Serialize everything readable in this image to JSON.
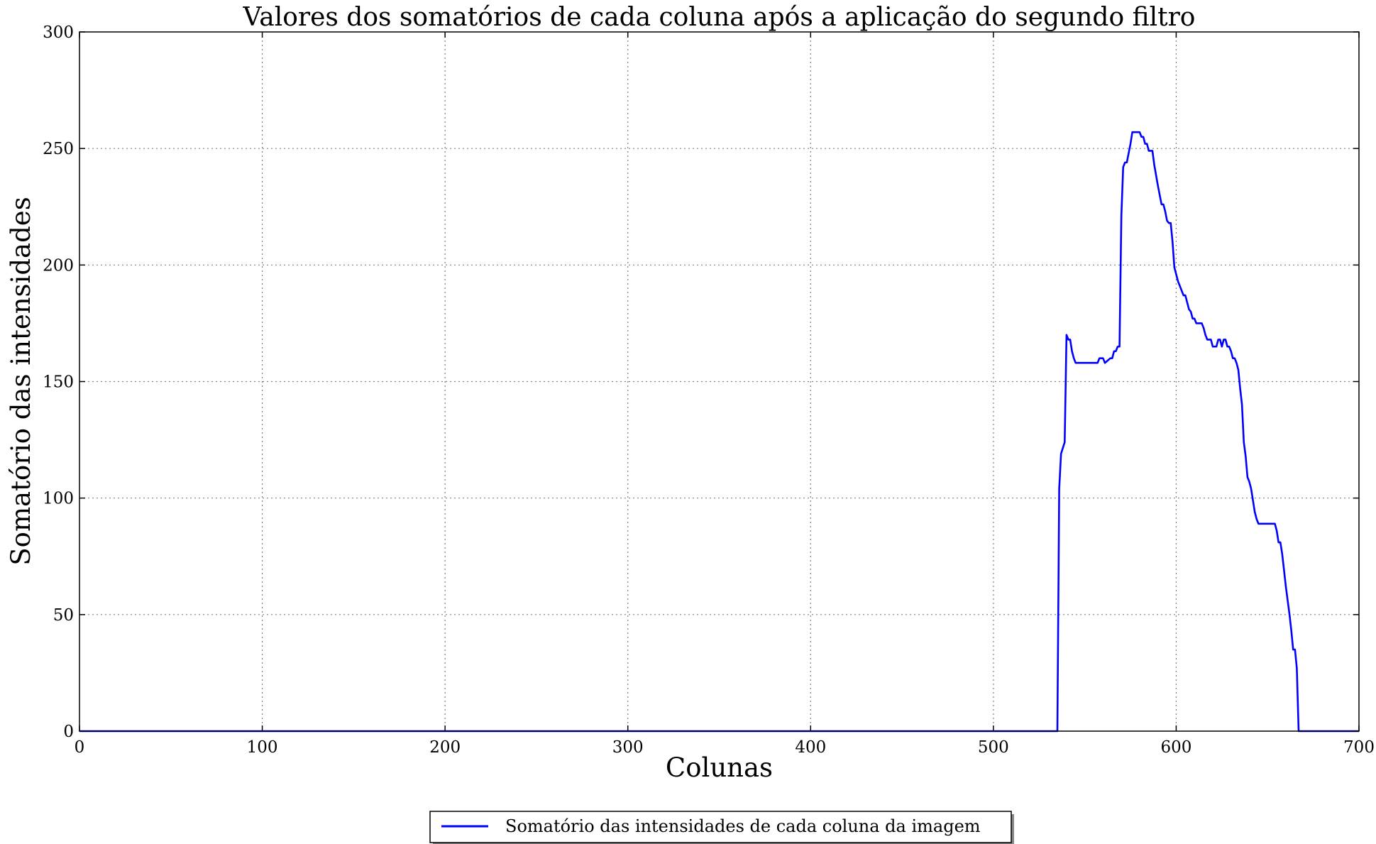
{
  "chart_data": {
    "type": "line",
    "title": "Valores dos somatórios de cada coluna após a aplicação do segundo filtro",
    "xlabel": "Colunas",
    "ylabel": "Somatório das intensidades",
    "xlim": [
      0,
      700
    ],
    "ylim": [
      0,
      300
    ],
    "xticks": [
      0,
      100,
      200,
      300,
      400,
      500,
      600,
      700
    ],
    "yticks": [
      0,
      50,
      100,
      150,
      200,
      250,
      300
    ],
    "grid": true,
    "legend_position": "bottom-center",
    "series": [
      {
        "name": "Somatório das intensidades de cada coluna da imagem",
        "color": "#0000ff",
        "x": [
          0,
          535,
          536,
          537,
          539,
          540,
          541,
          542,
          543,
          544,
          545,
          550,
          556,
          557,
          558,
          559,
          560,
          561,
          564,
          565,
          566,
          567,
          568,
          569,
          570,
          571,
          572,
          573,
          574,
          575,
          576,
          577,
          580,
          581,
          582,
          583,
          584,
          585,
          587,
          588,
          590,
          592,
          593,
          594,
          595,
          596,
          597,
          598,
          599,
          600,
          601,
          604,
          605,
          606,
          607,
          608,
          609,
          610,
          611,
          612,
          613,
          614,
          615,
          616,
          617,
          618,
          619,
          620,
          621,
          622,
          623,
          624,
          625,
          626,
          627,
          628,
          629,
          630,
          631,
          632,
          633,
          634,
          635,
          636,
          637,
          638,
          639,
          640,
          641,
          642,
          643,
          644,
          645,
          646,
          647,
          648,
          649,
          650,
          651,
          652,
          653,
          654,
          655,
          656,
          657,
          658,
          659,
          660,
          661,
          662,
          663,
          664,
          665,
          666,
          667,
          700
        ],
        "y": [
          0,
          0,
          104,
          119,
          124,
          170,
          168,
          168,
          163,
          160,
          158,
          158,
          158,
          158,
          160,
          160,
          160,
          158,
          160,
          160,
          163,
          163,
          165,
          165,
          221,
          242,
          244,
          244,
          248,
          252,
          257,
          257,
          257,
          255,
          255,
          252,
          252,
          249,
          249,
          243,
          234,
          226,
          226,
          223,
          219,
          218,
          218,
          210,
          199,
          196,
          193,
          187,
          187,
          184,
          181,
          180,
          177,
          177,
          175,
          175,
          175,
          175,
          173,
          170,
          168,
          168,
          168,
          165,
          165,
          165,
          168,
          168,
          165,
          168,
          168,
          165,
          165,
          163,
          160,
          160,
          158,
          155,
          147,
          140,
          124,
          118,
          109,
          107,
          104,
          99,
          94,
          91,
          89,
          89,
          89,
          89,
          89,
          89,
          89,
          89,
          89,
          89,
          86,
          81,
          81,
          76,
          69,
          62,
          56,
          50,
          43,
          35,
          35,
          27,
          0,
          0
        ]
      }
    ]
  }
}
